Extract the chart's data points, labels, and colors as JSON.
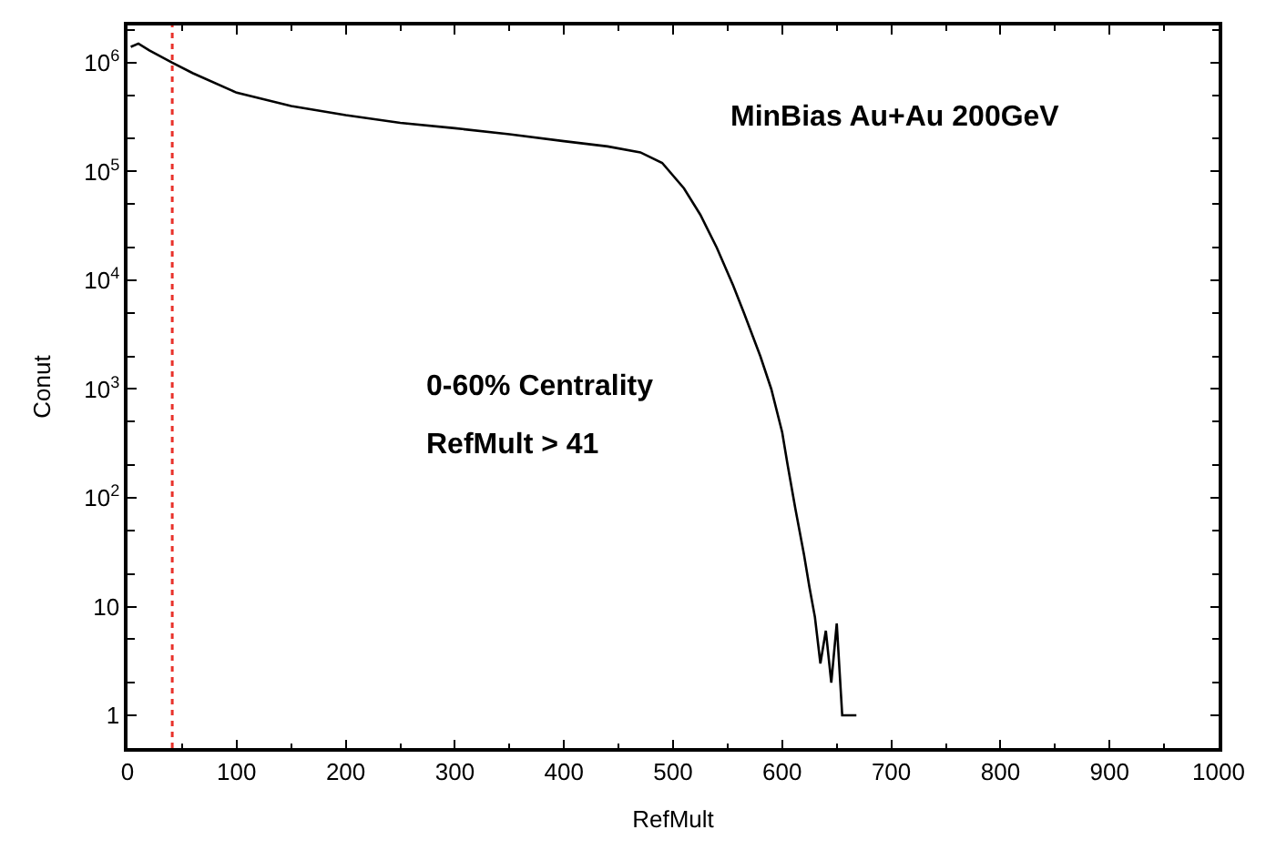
{
  "chart_data": {
    "type": "line",
    "xlabel": "RefMult",
    "ylabel": "Conut",
    "x": [
      3,
      10,
      20,
      41,
      60,
      100,
      150,
      200,
      250,
      300,
      350,
      400,
      440,
      470,
      490,
      510,
      525,
      540,
      555,
      565,
      580,
      590,
      600,
      605,
      612,
      620,
      625,
      630,
      635,
      640,
      645,
      650,
      655,
      660,
      668
    ],
    "series": [
      {
        "color": "#000000",
        "values": [
          1400000.0,
          1500000.0,
          1300000.0,
          1000000.0,
          800000.0,
          530000.0,
          400000.0,
          330000.0,
          280000.0,
          250000.0,
          220000.0,
          190000.0,
          170000.0,
          150000.0,
          120000.0,
          70000.0,
          40000.0,
          20000.0,
          9000.0,
          5000.0,
          2000.0,
          1000.0,
          400,
          200,
          80,
          30,
          15,
          8,
          3,
          6,
          2,
          7,
          1,
          1,
          1
        ]
      }
    ],
    "log": "y",
    "xlim": [
      0,
      1000
    ],
    "ylim": [
      0.5,
      2200000.0
    ],
    "xticks": [
      0,
      100,
      200,
      300,
      400,
      500,
      600,
      700,
      800,
      900,
      1000
    ],
    "yticks": [
      1,
      10,
      {
        "value": 100,
        "label": "10$^{2}$"
      },
      {
        "value": 1000,
        "label": "10$^{3}$"
      },
      {
        "value": 10000,
        "label": "10$^{4}$"
      },
      {
        "value": 100000,
        "label": "10$^{5}$"
      },
      {
        "value": 1000000,
        "label": "10$^{6}$"
      }
    ],
    "ref_lines": [
      {
        "axis": "x",
        "value": 41,
        "color": "#e8322b",
        "line_style": "dotted"
      }
    ],
    "annotations": [
      "MinBias Au+Au 200GeV",
      "0-60% Centrality",
      "RefMult > 41"
    ],
    "legend": false,
    "line_style": "solid",
    "marker": "none"
  }
}
